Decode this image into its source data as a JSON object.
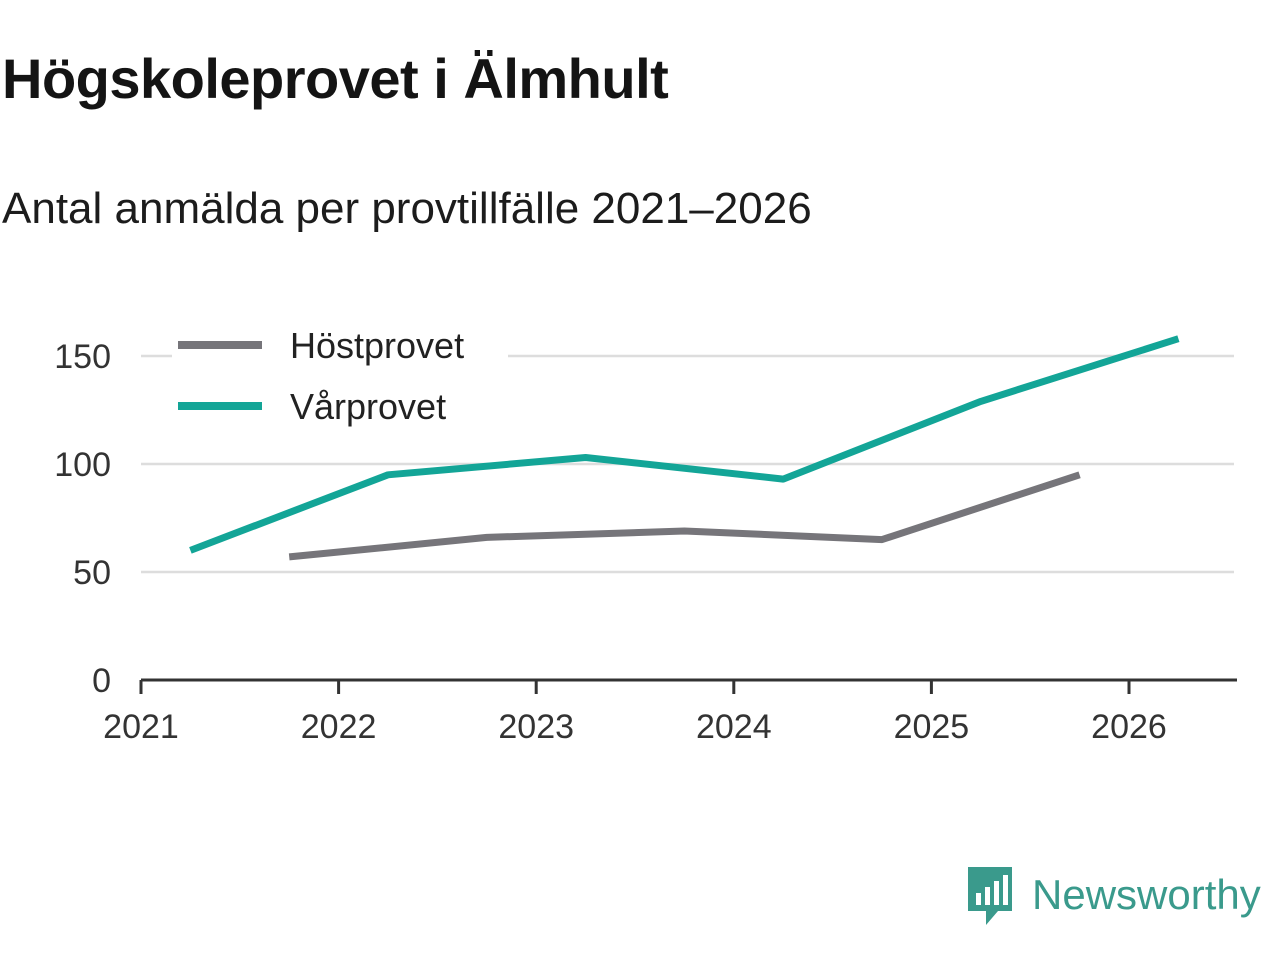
{
  "header": {
    "title": "Högskoleprovet i Älmhult",
    "subtitle": "Antal anmälda per provtillfälle 2021–2026"
  },
  "brand": {
    "name": "Newsworthy",
    "icon": "newsworthy-logo-icon",
    "color": "#3a9a8c"
  },
  "chart_data": {
    "type": "line",
    "title": "Högskoleprovet i Älmhult",
    "subtitle": "Antal anmälda per provtillfälle 2021–2026",
    "xlabel": "",
    "ylabel": "",
    "xlim": [
      2021,
      2026.7
    ],
    "ylim": [
      0,
      160
    ],
    "x_ticks": [
      "2021",
      "2022",
      "2023",
      "2024",
      "2025",
      "2026"
    ],
    "y_ticks": [
      "0",
      "50",
      "100",
      "150"
    ],
    "grid": true,
    "legend": "top-left",
    "series": [
      {
        "name": "Höstprovet",
        "color": "#76757a",
        "points": [
          {
            "x": "2021-10",
            "y": 57
          },
          {
            "x": "2022-10",
            "y": 66
          },
          {
            "x": "2023-10",
            "y": 69
          },
          {
            "x": "2024-10",
            "y": 65
          },
          {
            "x": "2025-10",
            "y": 95
          }
        ]
      },
      {
        "name": "Vårprovet",
        "color": "#13a597",
        "points": [
          {
            "x": "2021-04",
            "y": 60
          },
          {
            "x": "2022-04",
            "y": 95
          },
          {
            "x": "2023-04",
            "y": 103
          },
          {
            "x": "2024-04",
            "y": 93
          },
          {
            "x": "2025-04",
            "y": 129
          },
          {
            "x": "2026-04",
            "y": 158
          }
        ]
      }
    ]
  }
}
